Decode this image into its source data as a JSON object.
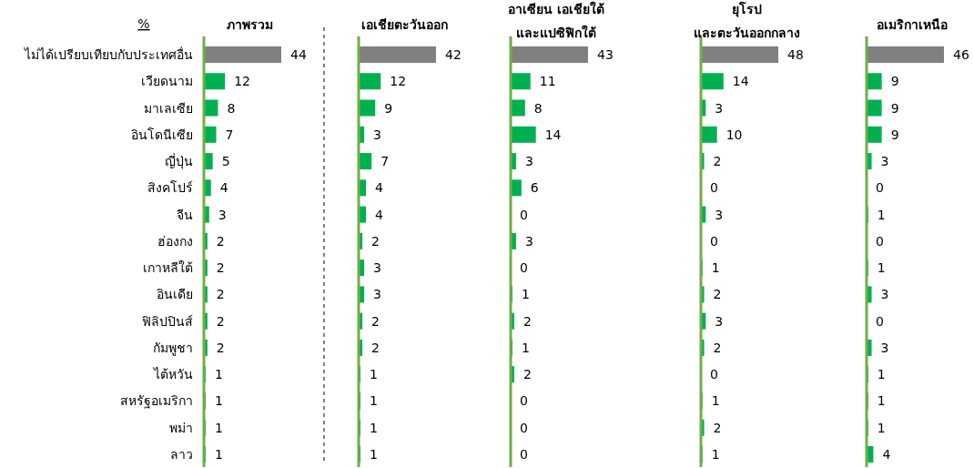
{
  "chart_data": [
    {
      "type": "bar",
      "orientation": "horizontal",
      "title": "ภาพรวม",
      "annotations": [
        "%"
      ],
      "tick_labels": "y",
      "data_labels": true,
      "categories": [
        "ไม่ได้เปรียบเทียบกับประเทศอื่น",
        "เวียดนาม",
        "มาเลเซีย",
        "อินโดนีเซีย",
        "ญี่ปุ่น",
        "สิงคโปร์",
        "จีน",
        "ฮ่องกง",
        "เกาหลีใต้",
        "อินเดีย",
        "ฟิลิปปินส์",
        "กัมพูชา",
        "ไต้หวัน",
        "สหรัฐอเมริกา",
        "พม่า",
        "ลาว"
      ],
      "values": [
        44,
        12,
        8,
        7,
        5,
        4,
        3,
        2,
        2,
        2,
        2,
        2,
        1,
        1,
        1,
        1
      ],
      "colors": [
        "#808080",
        "#00b050",
        "#00b050",
        "#00b050",
        "#00b050",
        "#00b050",
        "#00b050",
        "#00b050",
        "#00b050",
        "#00b050",
        "#00b050",
        "#00b050",
        "#00b050",
        "#00b050",
        "#00b050",
        "#00b050"
      ]
    },
    {
      "type": "bar",
      "orientation": "horizontal",
      "title": "เอเชียตะวันออก",
      "tick_labels": false,
      "data_labels": true,
      "categories": [
        null,
        null,
        null,
        null,
        null,
        null,
        null,
        null,
        null,
        null,
        null,
        null,
        null,
        null,
        null,
        null
      ],
      "values": [
        42,
        12,
        9,
        3,
        7,
        4,
        4,
        2,
        3,
        3,
        2,
        2,
        1,
        1,
        1,
        1
      ],
      "colors": [
        "#808080",
        "#00b050",
        "#00b050",
        "#00b050",
        "#00b050",
        "#00b050",
        "#00b050",
        "#00b050",
        "#00b050",
        "#00b050",
        "#00b050",
        "#00b050",
        "#00b050",
        "#00b050",
        "#00b050",
        "#00b050"
      ]
    },
    {
      "type": "bar",
      "orientation": "horizontal",
      "title": "อาเซียน เอเชียใต้\nและแปซิฟิกใต้",
      "tick_labels": false,
      "data_labels": true,
      "categories": [
        null,
        null,
        null,
        null,
        null,
        null,
        null,
        null,
        null,
        null,
        null,
        null,
        null,
        null,
        null,
        null
      ],
      "values": [
        43,
        11,
        8,
        14,
        3,
        6,
        0,
        3,
        0,
        1,
        2,
        1,
        2,
        0,
        0,
        0
      ],
      "colors": [
        "#808080",
        "#00b050",
        "#00b050",
        "#00b050",
        "#00b050",
        "#00b050",
        "#00b050",
        "#00b050",
        "#00b050",
        "#00b050",
        "#00b050",
        "#00b050",
        "#00b050",
        "#00b050",
        "#00b050",
        "#00b050"
      ]
    },
    {
      "type": "bar",
      "orientation": "horizontal",
      "title": "ยุโรป\nและตะวันออกกลาง",
      "tick_labels": false,
      "data_labels": true,
      "categories": [
        null,
        null,
        null,
        null,
        null,
        null,
        null,
        null,
        null,
        null,
        null,
        null,
        null,
        null,
        null,
        null
      ],
      "values": [
        48,
        14,
        3,
        10,
        2,
        0,
        3,
        0,
        1,
        2,
        3,
        2,
        0,
        1,
        2,
        1
      ],
      "colors": [
        "#808080",
        "#00b050",
        "#00b050",
        "#00b050",
        "#00b050",
        "#00b050",
        "#00b050",
        "#00b050",
        "#00b050",
        "#00b050",
        "#00b050",
        "#00b050",
        "#00b050",
        "#00b050",
        "#00b050",
        "#00b050"
      ]
    },
    {
      "type": "bar",
      "orientation": "horizontal",
      "title": "อเมริกาเหนือ",
      "tick_labels": false,
      "data_labels": true,
      "categories": [
        null,
        null,
        null,
        null,
        null,
        null,
        null,
        null,
        null,
        null,
        null,
        null,
        null,
        null,
        null,
        null
      ],
      "values": [
        46,
        9,
        9,
        9,
        3,
        0,
        1,
        0,
        1,
        3,
        0,
        3,
        1,
        1,
        1,
        4
      ],
      "colors": [
        "#808080",
        "#00b050",
        "#00b050",
        "#00b050",
        "#00b050",
        "#00b050",
        "#00b050",
        "#00b050",
        "#00b050",
        "#00b050",
        "#00b050",
        "#00b050",
        "#00b050",
        "#00b050",
        "#00b050",
        "#00b050"
      ]
    }
  ]
}
